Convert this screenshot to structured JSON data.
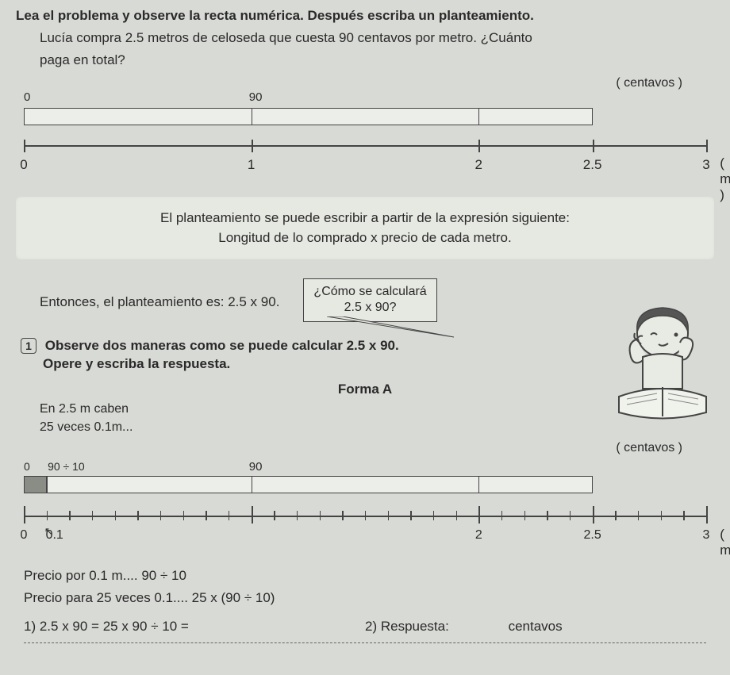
{
  "title": "Lea el problema y observe la recta numérica. Después escriba un planteamiento.",
  "problem": {
    "line1": "Lucía compra 2.5 metros de celoseda que cuesta 90 centavos por metro. ¿Cuánto",
    "line2": "paga en total?"
  },
  "chart1": {
    "unit_top": "( centavos )",
    "bar_start_label": "0",
    "bar_90_label": "90",
    "bar_colors": {
      "border": "#444444",
      "fill": "#eceee9"
    },
    "ticks": [
      {
        "pos_pct": 0,
        "label": "0"
      },
      {
        "pos_pct": 33.33,
        "label": "1"
      },
      {
        "pos_pct": 66.66,
        "label": "2"
      },
      {
        "pos_pct": 83.33,
        "label": "2.5"
      },
      {
        "pos_pct": 100,
        "label": "3"
      }
    ],
    "x_unit": "( metros )",
    "bar_fill_pct": 83.33,
    "seg_pct": 33.33
  },
  "explain": {
    "line1": "El planteamiento se puede escribir a partir de la expresión siguiente:",
    "line2": "Longitud de lo comprado x precio de cada metro."
  },
  "entonces": "Entonces, el planteamiento es: 2.5 x 90.",
  "speech": {
    "line1": "¿Cómo se calculará",
    "line2": "2.5 x 90?"
  },
  "task": {
    "num": "1",
    "line1": "Observe dos maneras como se puede calcular 2.5 x 90.",
    "line2": "Opere y escriba la respuesta."
  },
  "forma_a": "Forma A",
  "caben": {
    "line1": "En 2.5 m caben",
    "line2": "25 veces 0.1m..."
  },
  "chart2": {
    "unit_top": "( centavos )",
    "small_label": "90 ÷ 10",
    "bar_90_label": "90",
    "zero_label": "0",
    "first_seg_color": "#8a8d86",
    "ticks_major": [
      0,
      33.33,
      66.66,
      83.33,
      100
    ],
    "tick_labels": [
      {
        "pos_pct": 0,
        "label": "0"
      },
      {
        "pos_pct": 4.5,
        "label": "0.1"
      },
      {
        "pos_pct": 66.66,
        "label": "2"
      },
      {
        "pos_pct": 83.33,
        "label": "2.5"
      },
      {
        "pos_pct": 100,
        "label": "3"
      }
    ],
    "x_unit": "( metro",
    "minor_step_pct": 3.333,
    "bar_fill_pct": 83.33
  },
  "precio1": "Precio por 0.1 m....  90 ÷ 10",
  "precio2": "Precio para 25 veces 0.1....  25 x (90 ÷ 10)",
  "answers": {
    "q1": "1) 2.5 x 90 = 25 x 90 ÷ 10 =",
    "q2_label": "2) Respuesta:",
    "q2_unit": "centavos"
  },
  "colors": {
    "bg": "#d8dad5",
    "text": "#2a2a2a",
    "line": "#444444"
  }
}
